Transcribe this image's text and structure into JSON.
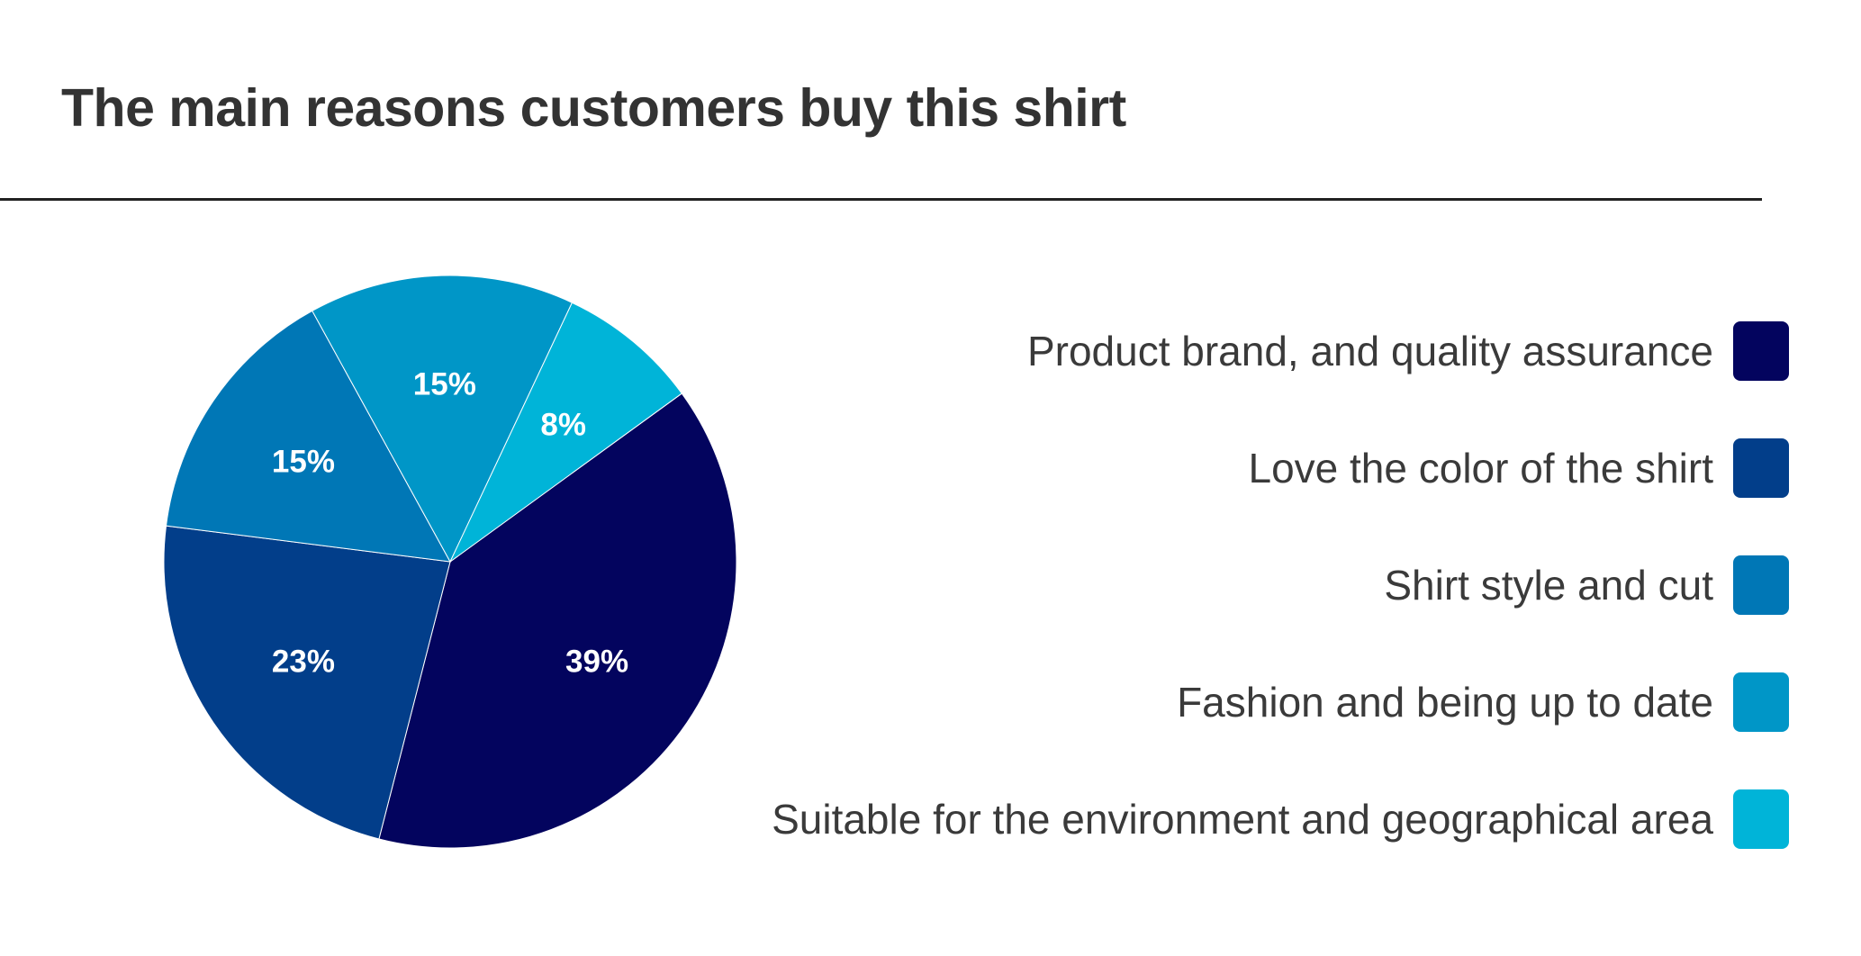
{
  "chart_data": {
    "type": "pie",
    "title": "The main reasons customers buy this shirt",
    "categories": [
      "Product brand, and quality assurance",
      "Love the color of the shirt",
      "Shirt style and cut",
      "Fashion and being up to date",
      "Suitable for the environment and geographical area"
    ],
    "values": [
      39,
      23,
      15,
      15,
      8
    ],
    "value_labels": [
      "39%",
      "23%",
      "15%",
      "15%",
      "8%"
    ],
    "colors": [
      "#03045e",
      "#023e8a",
      "#0077b6",
      "#0096c7",
      "#00b4d8"
    ],
    "legend_position": "right"
  }
}
